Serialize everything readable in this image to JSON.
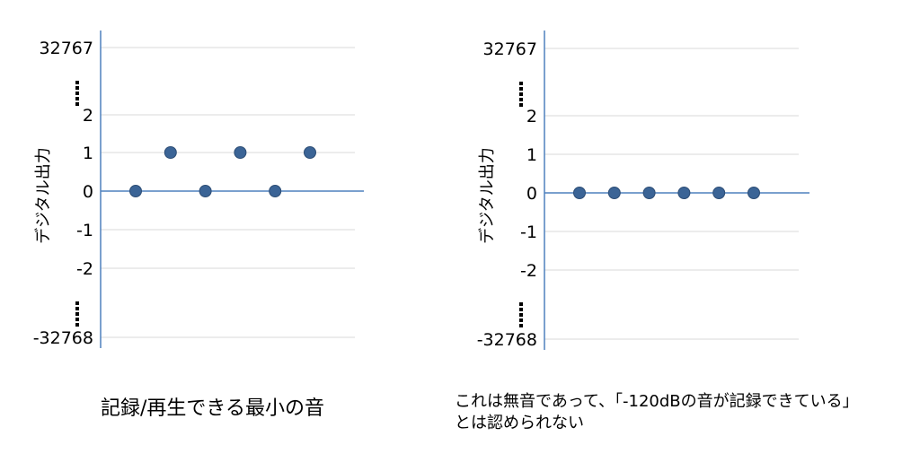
{
  "chart_data": [
    {
      "type": "scatter",
      "ylabel": "デジタル出力",
      "y_ticks": [
        "32767",
        "2",
        "1",
        "0",
        "-1",
        "-2",
        "-32768"
      ],
      "y_ellipsis": "⋮",
      "x": [
        1,
        2,
        3,
        4,
        5,
        6
      ],
      "values": [
        0,
        1,
        0,
        1,
        0,
        1
      ],
      "grid": true,
      "marker_color": "#3B6496",
      "axis_color": "#4F81BD",
      "grid_color": "#D9D9D9",
      "caption": "記録/再生できる最小の音"
    },
    {
      "type": "scatter",
      "ylabel": "デジタル出力",
      "y_ticks": [
        "32767",
        "2",
        "1",
        "0",
        "-1",
        "-2",
        "-32768"
      ],
      "y_ellipsis": "⋮",
      "x": [
        1,
        2,
        3,
        4,
        5,
        6
      ],
      "values": [
        0,
        0,
        0,
        0,
        0,
        0
      ],
      "grid": true,
      "marker_color": "#3B6496",
      "axis_color": "#4F81BD",
      "grid_color": "#D9D9D9",
      "caption_lines": [
        "これは無音であって、「-120dBの音が記録できている」",
        "とは認められない"
      ]
    }
  ]
}
